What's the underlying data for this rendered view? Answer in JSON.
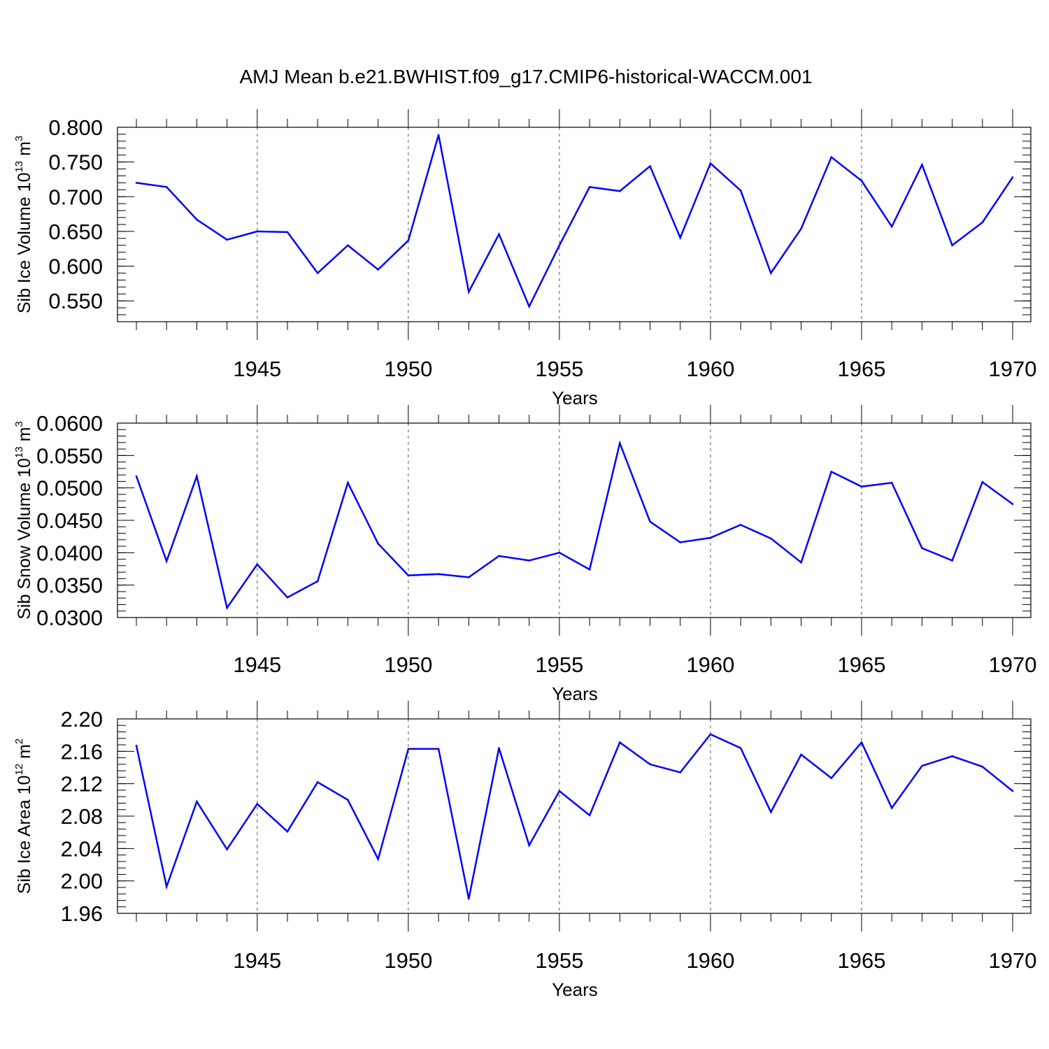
{
  "chart_data": {
    "title": "AMJ Mean b.e21.BWHIST.f09_g17.CMIP6-historical-WACCM.001",
    "panels": [
      {
        "type": "line",
        "ylabel": "Sib Ice Volume 10",
        "ylabel_exp": "13",
        "ylabel_unit": " m",
        "ylabel_unit_exp": "3",
        "xlabel": "Years",
        "xlim": [
          1941,
          1970
        ],
        "ylim": [
          0.52,
          0.8
        ],
        "yticks": [
          0.55,
          0.6,
          0.65,
          0.7,
          0.75,
          0.8
        ],
        "ytick_labels": [
          "0.550",
          "0.600",
          "0.650",
          "0.700",
          "0.750",
          "0.800"
        ],
        "xticks": [
          1945,
          1950,
          1955,
          1960,
          1965,
          1970
        ],
        "xtick_labels": [
          "1945",
          "1950",
          "1955",
          "1960",
          "1965",
          "1970"
        ],
        "series": [
          {
            "name": "Sib Ice Volume",
            "color": "#0000ff",
            "x": [
              1941,
              1942,
              1943,
              1944,
              1945,
              1946,
              1947,
              1948,
              1949,
              1950,
              1951,
              1952,
              1953,
              1954,
              1955,
              1956,
              1957,
              1958,
              1959,
              1960,
              1961,
              1962,
              1963,
              1964,
              1965,
              1966,
              1967,
              1968,
              1969,
              1970
            ],
            "y": [
              0.72,
              0.714,
              0.667,
              0.638,
              0.65,
              0.649,
              0.59,
              0.63,
              0.595,
              0.637,
              0.789,
              0.563,
              0.646,
              0.542,
              0.63,
              0.714,
              0.708,
              0.744,
              0.641,
              0.748,
              0.709,
              0.59,
              0.654,
              0.757,
              0.723,
              0.657,
              0.746,
              0.63,
              0.663,
              0.728
            ]
          }
        ]
      },
      {
        "type": "line",
        "ylabel": "Sib Snow Volume 10",
        "ylabel_exp": "13",
        "ylabel_unit": " m",
        "ylabel_unit_exp": "3",
        "xlabel": "Years",
        "xlim": [
          1941,
          1970
        ],
        "ylim": [
          0.03,
          0.06
        ],
        "yticks": [
          0.03,
          0.035,
          0.04,
          0.045,
          0.05,
          0.055,
          0.06
        ],
        "ytick_labels": [
          "0.0300",
          "0.0350",
          "0.0400",
          "0.0450",
          "0.0500",
          "0.0550",
          "0.0600"
        ],
        "xticks": [
          1945,
          1950,
          1955,
          1960,
          1965,
          1970
        ],
        "xtick_labels": [
          "1945",
          "1950",
          "1955",
          "1960",
          "1965",
          "1970"
        ],
        "series": [
          {
            "name": "Sib Snow Volume",
            "color": "#0000ff",
            "x": [
              1941,
              1942,
              1943,
              1944,
              1945,
              1946,
              1947,
              1948,
              1949,
              1950,
              1951,
              1952,
              1953,
              1954,
              1955,
              1956,
              1957,
              1958,
              1959,
              1960,
              1961,
              1962,
              1963,
              1964,
              1965,
              1966,
              1967,
              1968,
              1969,
              1970
            ],
            "y": [
              0.0518,
              0.0387,
              0.0518,
              0.0315,
              0.0382,
              0.0331,
              0.0356,
              0.0508,
              0.0414,
              0.0365,
              0.0367,
              0.0362,
              0.0395,
              0.0388,
              0.04,
              0.0374,
              0.0569,
              0.0448,
              0.0416,
              0.0423,
              0.0443,
              0.0422,
              0.0385,
              0.0525,
              0.0502,
              0.0508,
              0.0407,
              0.0388,
              0.0509,
              0.0475
            ]
          }
        ]
      },
      {
        "type": "line",
        "ylabel": "Sib Ice Area 10",
        "ylabel_exp": "12",
        "ylabel_unit": " m",
        "ylabel_unit_exp": "2",
        "xlabel": "Years",
        "xlim": [
          1941,
          1970
        ],
        "ylim": [
          1.96,
          2.2
        ],
        "yticks": [
          1.96,
          2.0,
          2.04,
          2.08,
          2.12,
          2.16,
          2.2
        ],
        "ytick_labels": [
          "1.96",
          "2.00",
          "2.04",
          "2.08",
          "2.12",
          "2.16",
          "2.20"
        ],
        "xticks": [
          1945,
          1950,
          1955,
          1960,
          1965,
          1970
        ],
        "xtick_labels": [
          "1945",
          "1950",
          "1955",
          "1960",
          "1965",
          "1970"
        ],
        "series": [
          {
            "name": "Sib Ice Area",
            "color": "#0000ff",
            "x": [
              1941,
              1942,
              1943,
              1944,
              1945,
              1946,
              1947,
              1948,
              1949,
              1950,
              1951,
              1952,
              1953,
              1954,
              1955,
              1956,
              1957,
              1958,
              1959,
              1960,
              1961,
              1962,
              1963,
              1964,
              1965,
              1966,
              1967,
              1968,
              1969,
              1970
            ],
            "y": [
              2.167,
              1.993,
              2.098,
              2.039,
              2.095,
              2.061,
              2.122,
              2.1,
              2.027,
              2.163,
              2.163,
              1.978,
              2.164,
              2.044,
              2.111,
              2.081,
              2.171,
              2.144,
              2.134,
              2.181,
              2.164,
              2.085,
              2.156,
              2.127,
              2.171,
              2.09,
              2.142,
              2.154,
              2.141,
              2.111
            ]
          }
        ]
      }
    ]
  }
}
